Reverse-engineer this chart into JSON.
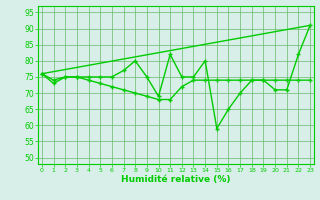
{
  "line_zigzag": {
    "x": [
      0,
      1,
      2,
      3,
      4,
      5,
      6,
      7,
      8,
      9,
      10,
      11,
      12,
      13,
      14,
      15,
      16,
      17,
      18,
      19,
      20,
      21,
      22,
      23
    ],
    "y": [
      76,
      74,
      75,
      75,
      75,
      75,
      75,
      77,
      80,
      75,
      69,
      82,
      75,
      75,
      80,
      59,
      65,
      70,
      74,
      74,
      71,
      71,
      82,
      91
    ]
  },
  "line_smooth": {
    "x": [
      0,
      1,
      2,
      3,
      4,
      5,
      6,
      7,
      8,
      9,
      10,
      11,
      12,
      13,
      14,
      15,
      16,
      17,
      18,
      19,
      20,
      21,
      22,
      23
    ],
    "y": [
      76,
      73,
      75,
      75,
      74,
      73,
      72,
      71,
      70,
      69,
      68,
      68,
      72,
      74,
      74,
      74,
      74,
      74,
      74,
      74,
      74,
      74,
      74,
      74
    ]
  },
  "line_diag": {
    "x": [
      0,
      23
    ],
    "y": [
      76,
      91
    ]
  },
  "color": "#00cc00",
  "bgcolor": "#d8eee8",
  "xlabel": "Humidité relative (%)",
  "ylim": [
    48,
    97
  ],
  "yticks": [
    50,
    55,
    60,
    65,
    70,
    75,
    80,
    85,
    90,
    95
  ],
  "xticks": [
    0,
    1,
    2,
    3,
    4,
    5,
    6,
    7,
    8,
    9,
    10,
    11,
    12,
    13,
    14,
    15,
    16,
    17,
    18,
    19,
    20,
    21,
    22,
    23
  ],
  "xlim": [
    -0.3,
    23.3
  ]
}
